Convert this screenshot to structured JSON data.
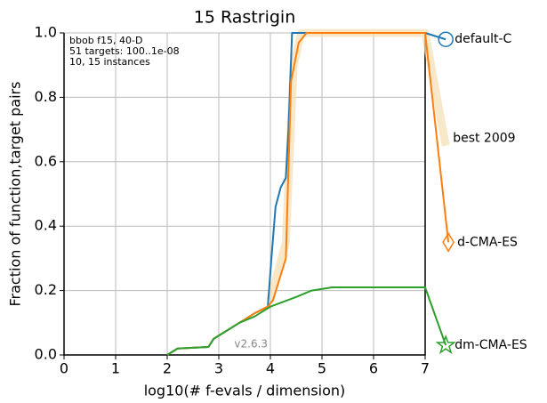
{
  "chart_data": {
    "type": "line",
    "title": "15 Rastrigin",
    "xlabel": "log10(# f-evals / dimension)",
    "ylabel": "Fraction of function,target pairs",
    "annotations": [
      "bbob f15, 40-D",
      "51 targets: 100..1e-08",
      "10, 15 instances"
    ],
    "version": "v2.6.3",
    "xlim": [
      0,
      7
    ],
    "xticks": [
      0,
      1,
      2,
      3,
      4,
      5,
      6,
      7
    ],
    "ylim": [
      0,
      1
    ],
    "yticks": [
      {
        "value": 0,
        "label": "0.0"
      },
      0.2,
      0.4,
      0.6,
      0.8,
      {
        "value": 1,
        "label": "1.0"
      }
    ],
    "grid": true,
    "series": [
      {
        "name": "best 2009",
        "color": "#f5deb3",
        "marker": "none",
        "x": [
          4.0,
          4.3,
          4.45,
          4.6,
          7.0,
          7.4
        ],
        "values": [
          0.17,
          0.35,
          0.9,
          1.0,
          1.0,
          0.65
        ]
      },
      {
        "name": "default-C",
        "color": "#1f77b4",
        "marker": "circle",
        "x": [
          2.0,
          2.2,
          2.8,
          2.9,
          3.1,
          3.4,
          3.7,
          3.95,
          4.02,
          4.1,
          4.2,
          4.3,
          4.35,
          4.42,
          7.0,
          7.4
        ],
        "values": [
          0,
          0.02,
          0.025,
          0.05,
          0.07,
          0.1,
          0.13,
          0.15,
          0.3,
          0.46,
          0.52,
          0.55,
          0.7,
          1.0,
          1.0,
          0.98
        ]
      },
      {
        "name": "d-CMA-ES",
        "color": "#ff7f0e",
        "marker": "diamond",
        "x": [
          2.0,
          2.2,
          2.8,
          2.9,
          3.1,
          3.4,
          3.7,
          3.95,
          4.05,
          4.3,
          4.4,
          4.55,
          4.7,
          7.0,
          7.45
        ],
        "values": [
          0,
          0.02,
          0.025,
          0.05,
          0.07,
          0.1,
          0.13,
          0.15,
          0.17,
          0.3,
          0.85,
          0.97,
          1.0,
          1.0,
          0.35
        ]
      },
      {
        "name": "dm-CMA-ES",
        "color": "#2ca02c",
        "marker": "star",
        "x": [
          2.0,
          2.2,
          2.8,
          2.9,
          3.1,
          3.4,
          3.7,
          4.0,
          4.5,
          4.8,
          5.2,
          7.0,
          7.4
        ],
        "values": [
          0,
          0.02,
          0.025,
          0.05,
          0.07,
          0.1,
          0.12,
          0.15,
          0.18,
          0.2,
          0.21,
          0.21,
          0.03
        ]
      }
    ]
  }
}
